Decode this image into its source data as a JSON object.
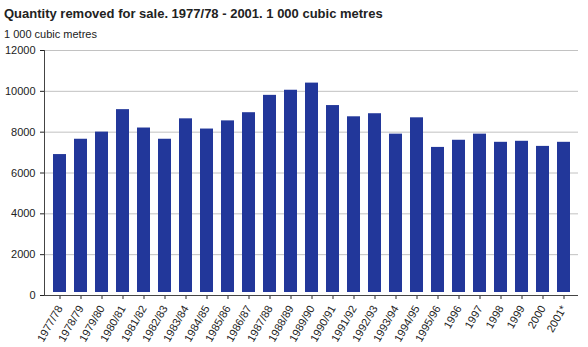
{
  "chart_data": {
    "type": "bar",
    "title": "Quantity removed for sale. 1977/78 - 2001. 1 000 cubic metres",
    "y_label": "1 000 cubic metres",
    "categories": [
      "1977/78",
      "1978/79",
      "1979/80",
      "1980/81",
      "1981/82",
      "1982/83",
      "1983/84",
      "1984/85",
      "1985/86",
      "1986/87",
      "1987/88",
      "1988/89",
      "1989/90",
      "1990/91",
      "1991/92",
      "1992/93",
      "1993/94",
      "1994/95",
      "1995/96",
      "1996",
      "1997",
      "1998",
      "1999",
      "2000",
      "2001*"
    ],
    "values": [
      7050,
      7800,
      8150,
      9250,
      8350,
      7800,
      8800,
      8300,
      8700,
      9100,
      9950,
      10200,
      10550,
      9450,
      8900,
      9050,
      8050,
      8850,
      7400,
      7750,
      8050,
      7650,
      7700,
      7450,
      7650
    ],
    "color": "#22379a",
    "ylim": [
      0,
      12000
    ],
    "yticks": [
      0,
      2000,
      4000,
      6000,
      8000,
      10000,
      12000
    ],
    "grid": true
  }
}
